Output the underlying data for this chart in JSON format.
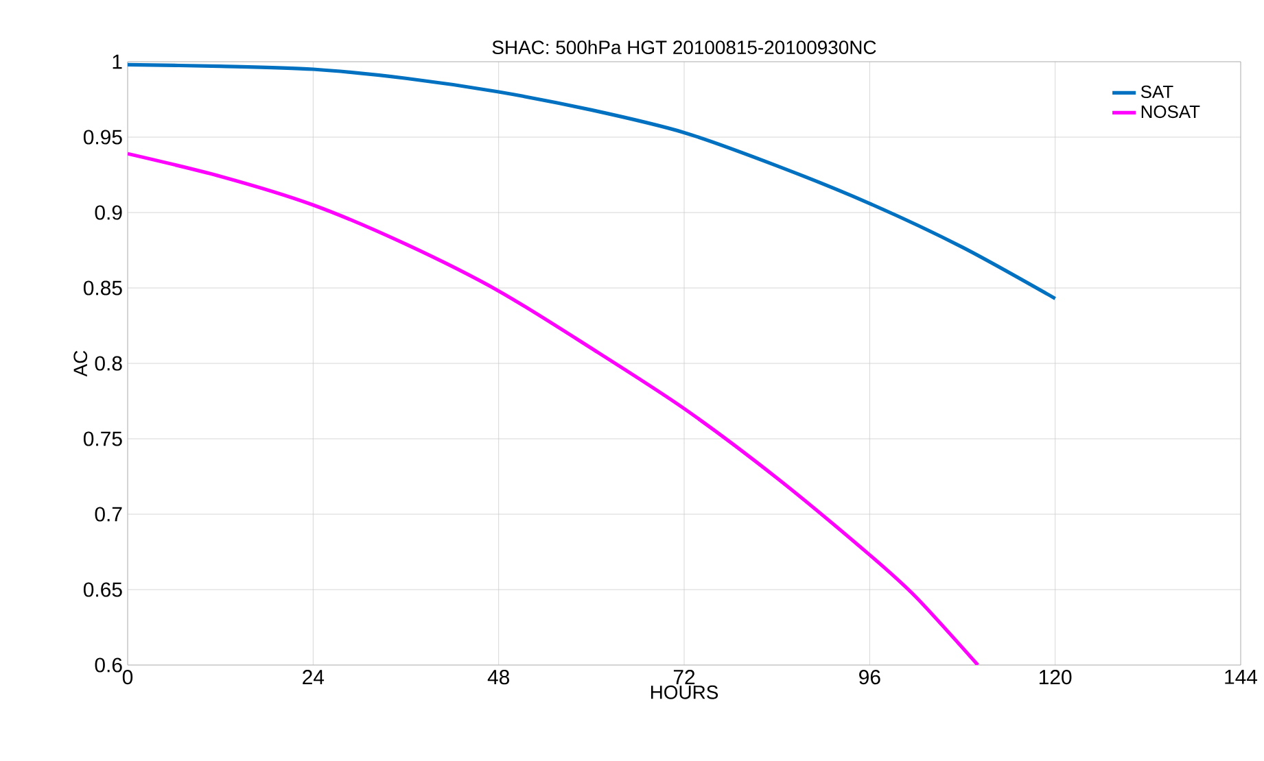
{
  "chart_data": {
    "type": "line",
    "title": "SHAC: 500hPa HGT 20100815-20100930NC",
    "xlabel": "HOURS",
    "ylabel": "AC",
    "xlim": [
      0,
      144
    ],
    "xticks": [
      0,
      24,
      48,
      72,
      96,
      120,
      144
    ],
    "ylim": [
      0.6,
      1
    ],
    "yticks": [
      0.6,
      0.65,
      0.7,
      0.75,
      0.8,
      0.85,
      0.9,
      0.95,
      1
    ],
    "grid": true,
    "legend": "top right",
    "marker": "none",
    "line_style": "solid",
    "series": [
      {
        "name": "SAT",
        "color": "#0070c0",
        "x": [
          0,
          12,
          24,
          36,
          48,
          60,
          72,
          84,
          96,
          108,
          120
        ],
        "values": [
          0.998,
          0.997,
          0.995,
          0.989,
          0.98,
          0.968,
          0.953,
          0.931,
          0.906,
          0.877,
          0.843
        ]
      },
      {
        "name": "NOSAT",
        "color": "#ff00ff",
        "x": [
          0,
          12,
          24,
          36,
          48,
          60,
          72,
          84,
          96,
          102,
          110
        ],
        "values": [
          0.939,
          0.924,
          0.905,
          0.879,
          0.848,
          0.81,
          0.77,
          0.724,
          0.673,
          0.645,
          0.6
        ]
      }
    ]
  }
}
